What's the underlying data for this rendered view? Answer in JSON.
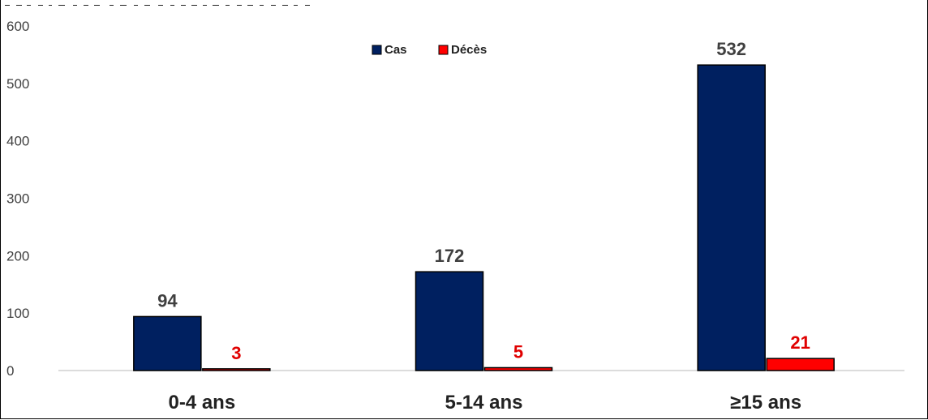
{
  "chart_data": {
    "type": "bar",
    "categories": [
      "0-4 ans",
      "5-14 ans",
      "≥15 ans"
    ],
    "series": [
      {
        "name": "Cas",
        "values": [
          94,
          172,
          532
        ],
        "color": "#002060",
        "label_color": "#404040"
      },
      {
        "name": "Décès",
        "values": [
          3,
          5,
          21
        ],
        "color": "#FF0000",
        "label_color": "#E00000"
      }
    ],
    "y_ticks": [
      "0",
      "100",
      "200",
      "300",
      "400",
      "500",
      "600"
    ],
    "ylim": [
      0,
      600
    ],
    "xlabel": "",
    "ylabel": "",
    "grid": false,
    "legend_position": "top-center"
  }
}
